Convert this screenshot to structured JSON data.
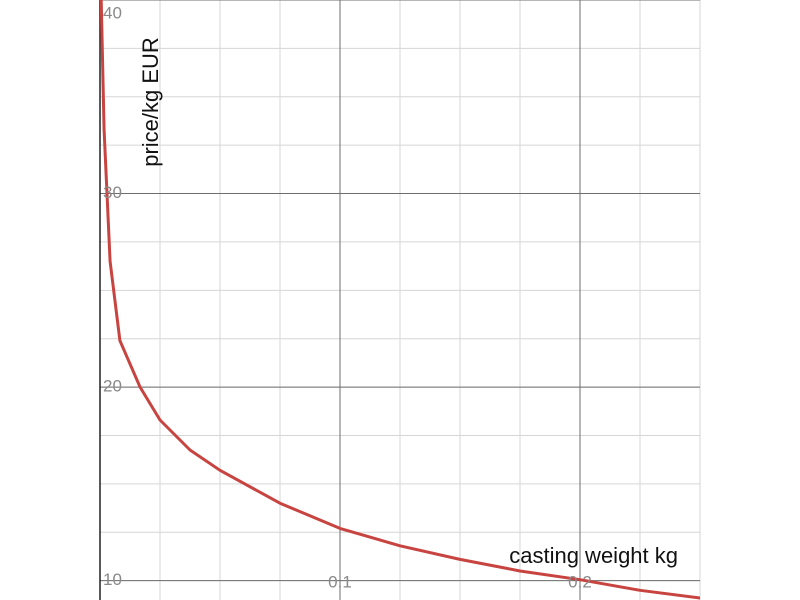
{
  "chart_data": {
    "type": "line",
    "x_label": "casting weight kg",
    "y_label": "price/kg EUR",
    "x": [
      0.0005,
      0.0017,
      0.0042,
      0.0083,
      0.0167,
      0.025,
      0.0375,
      0.05,
      0.075,
      0.1,
      0.125,
      0.15,
      0.175,
      0.2,
      0.225,
      0.25
    ],
    "values": [
      40,
      33.3,
      26.5,
      22.4,
      20,
      18.3,
      16.75,
      15.7,
      14,
      12.7,
      11.8,
      11.1,
      10.5,
      10.05,
      9.5,
      9.1
    ],
    "color": "#c74440",
    "xlim": [
      0,
      0.25
    ],
    "ylim": [
      9,
      40
    ],
    "xticks": [
      0.1,
      0.2
    ],
    "yticks": [
      10,
      20,
      30,
      40
    ],
    "grid": true,
    "minor_grid": true
  }
}
